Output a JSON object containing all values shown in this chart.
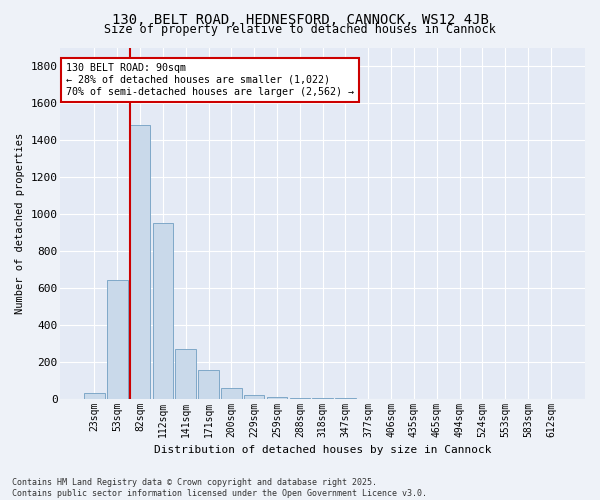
{
  "title": "130, BELT ROAD, HEDNESFORD, CANNOCK, WS12 4JB",
  "subtitle": "Size of property relative to detached houses in Cannock",
  "xlabel": "Distribution of detached houses by size in Cannock",
  "ylabel": "Number of detached properties",
  "categories": [
    "23sqm",
    "53sqm",
    "82sqm",
    "112sqm",
    "141sqm",
    "171sqm",
    "200sqm",
    "229sqm",
    "259sqm",
    "288sqm",
    "318sqm",
    "347sqm",
    "377sqm",
    "406sqm",
    "435sqm",
    "465sqm",
    "494sqm",
    "524sqm",
    "553sqm",
    "583sqm",
    "612sqm"
  ],
  "values": [
    30,
    640,
    1480,
    950,
    270,
    155,
    55,
    20,
    10,
    3,
    2,
    1,
    0,
    0,
    0,
    0,
    0,
    0,
    0,
    0,
    0
  ],
  "bar_color": "#c9d9ea",
  "bar_edge_color": "#7fa8c8",
  "vline_x_index": 2,
  "vline_color": "#cc0000",
  "annotation_text": "130 BELT ROAD: 90sqm\n← 28% of detached houses are smaller (1,022)\n70% of semi-detached houses are larger (2,562) →",
  "annotation_box_color": "#ffffff",
  "annotation_box_edge": "#cc0000",
  "ylim": [
    0,
    1900
  ],
  "yticks": [
    0,
    200,
    400,
    600,
    800,
    1000,
    1200,
    1400,
    1600,
    1800
  ],
  "footer_line1": "Contains HM Land Registry data © Crown copyright and database right 2025.",
  "footer_line2": "Contains public sector information licensed under the Open Government Licence v3.0.",
  "bg_color": "#eef2f8",
  "plot_bg_color": "#e4eaf5"
}
